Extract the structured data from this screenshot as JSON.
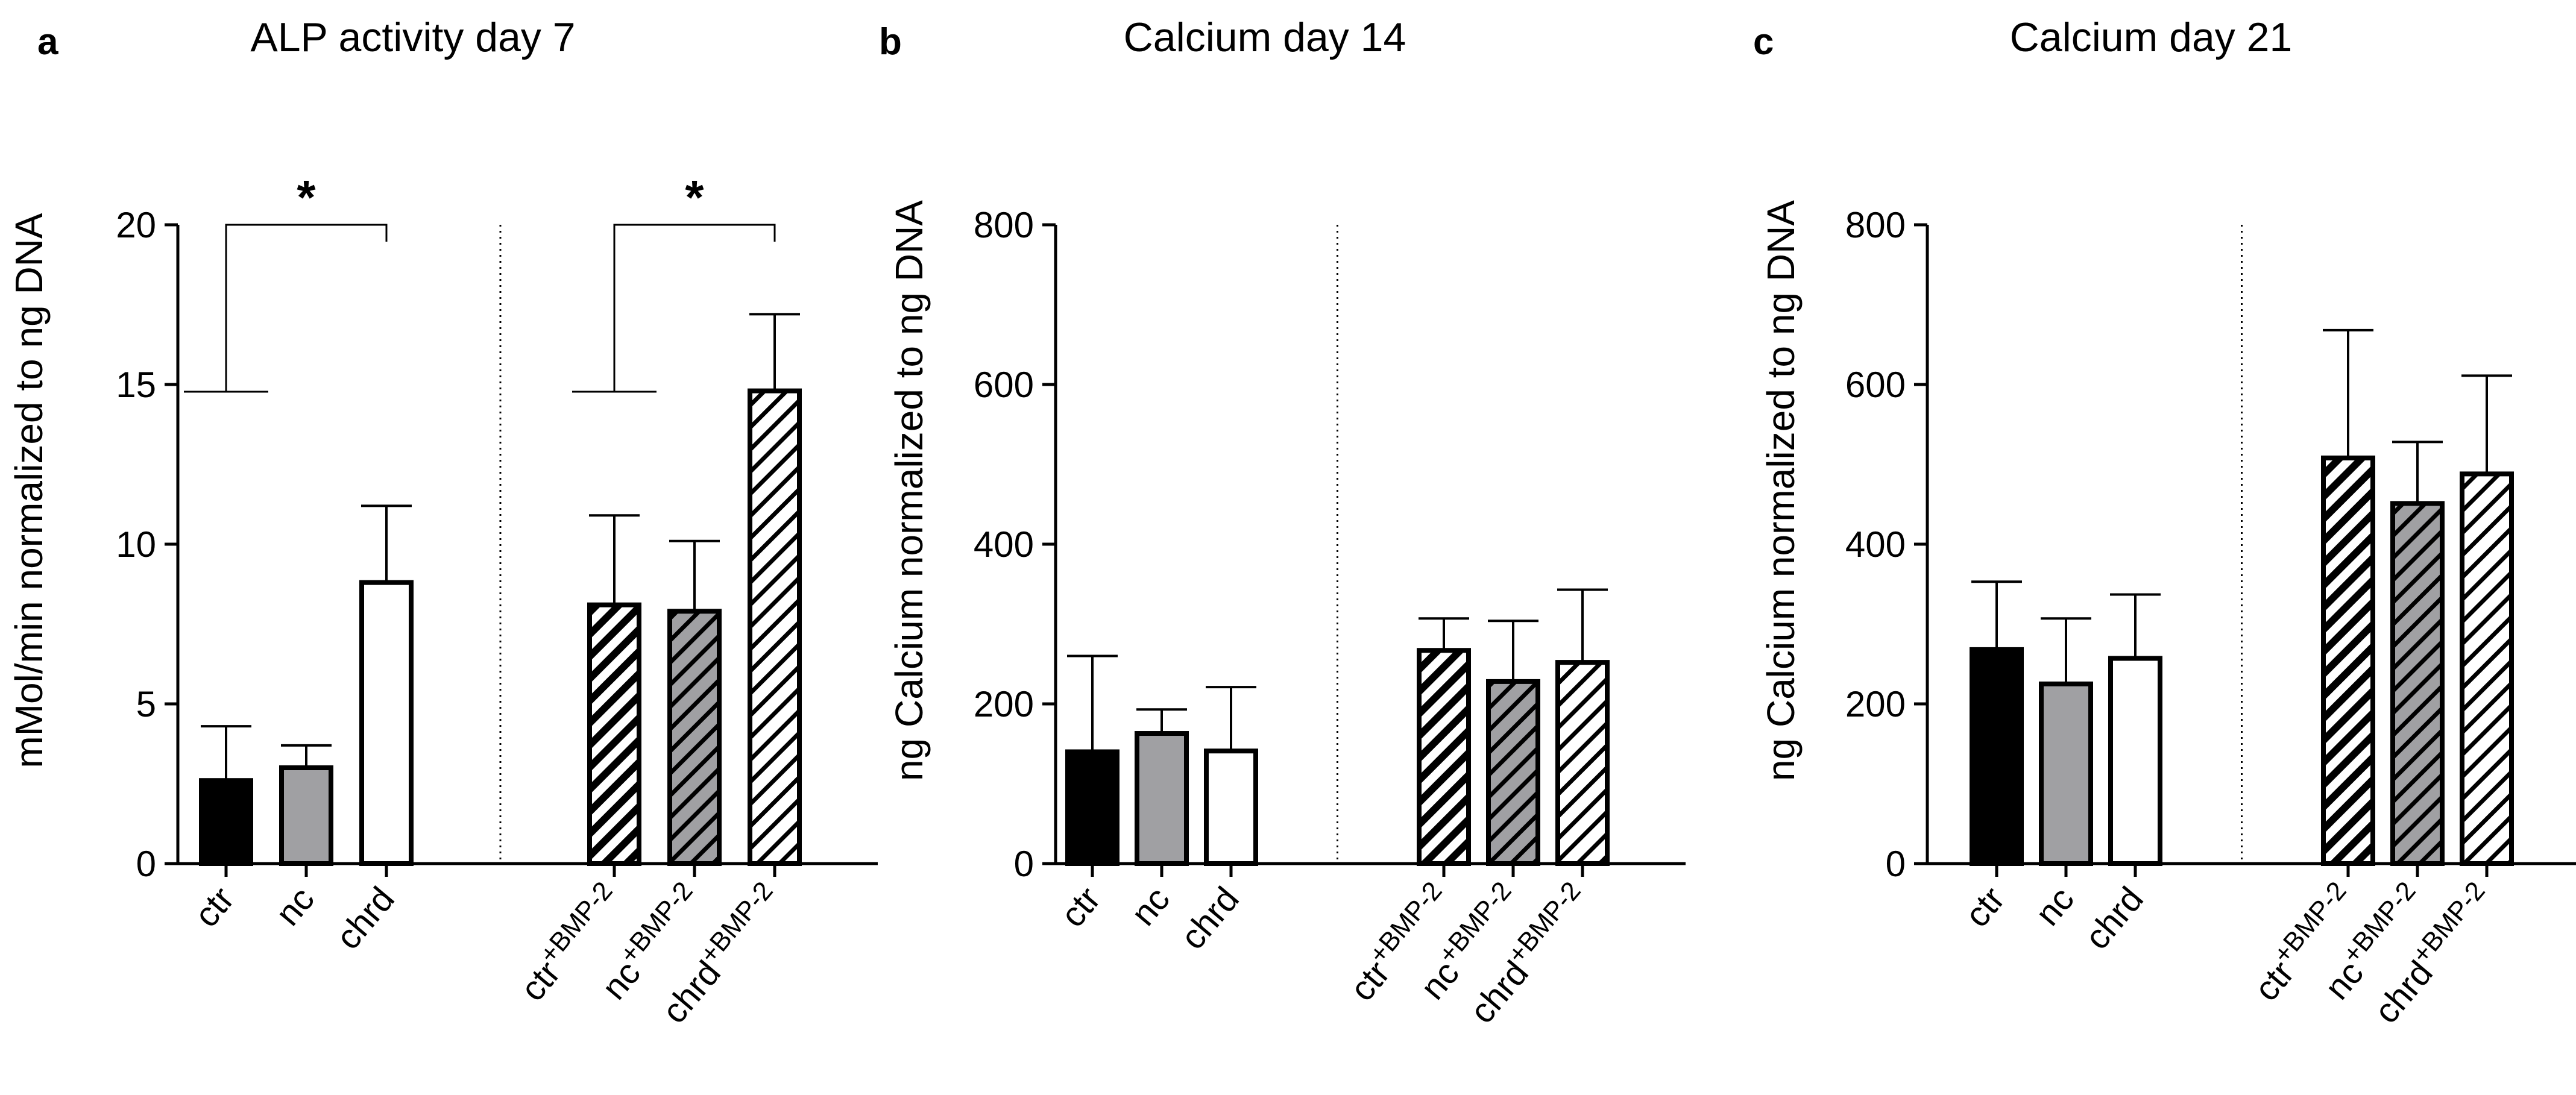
{
  "chart_data": [
    {
      "panel": "a",
      "type": "bar",
      "title": "ALP activity day 7",
      "ylabel": "mMol/min normalized to ng DNA",
      "xlabel": "",
      "ylim": [
        0,
        20
      ],
      "yticks": [
        0,
        5,
        10,
        15,
        20
      ],
      "categories": [
        {
          "main": "ctr",
          "sup": ""
        },
        {
          "main": "nc",
          "sup": ""
        },
        {
          "main": "chrd",
          "sup": ""
        },
        {
          "main": "ctr",
          "sup": "+BMP-2"
        },
        {
          "main": "nc",
          "sup": "+BMP-2"
        },
        {
          "main": "chrd",
          "sup": "+BMP-2"
        }
      ],
      "values": [
        2.6,
        3.0,
        8.8,
        8.1,
        7.9,
        14.8
      ],
      "errors": [
        1.7,
        0.7,
        2.4,
        2.8,
        2.2,
        2.4
      ],
      "significance": [
        {
          "from": 0,
          "to": 2,
          "label": "*"
        },
        {
          "from": 3,
          "to": 5,
          "label": "*"
        }
      ]
    },
    {
      "panel": "b",
      "type": "bar",
      "title": "Calcium day 14",
      "ylabel": "ng Calcium normalized to ng  DNA",
      "xlabel": "",
      "ylim": [
        0,
        800
      ],
      "yticks": [
        0,
        200,
        400,
        600,
        800
      ],
      "categories": [
        {
          "main": "ctr",
          "sup": ""
        },
        {
          "main": "nc",
          "sup": ""
        },
        {
          "main": "chrd",
          "sup": ""
        },
        {
          "main": "ctr",
          "sup": "+BMP-2"
        },
        {
          "main": "nc",
          "sup": "+BMP-2"
        },
        {
          "main": "chrd",
          "sup": "+BMP-2"
        }
      ],
      "values": [
        140,
        163,
        141,
        267,
        228,
        252
      ],
      "errors": [
        120,
        30,
        80,
        40,
        76,
        91
      ],
      "significance": []
    },
    {
      "panel": "c",
      "type": "bar",
      "title": "Calcium day 21",
      "ylabel": "ng Calcium normalized to ng  DNA",
      "xlabel": "",
      "ylim": [
        0,
        800
      ],
      "yticks": [
        0,
        200,
        400,
        600,
        800
      ],
      "categories": [
        {
          "main": "ctr",
          "sup": ""
        },
        {
          "main": "nc",
          "sup": ""
        },
        {
          "main": "chrd",
          "sup": ""
        },
        {
          "main": "ctr",
          "sup": "+BMP-2"
        },
        {
          "main": "nc",
          "sup": "+BMP-2"
        },
        {
          "main": "chrd",
          "sup": "+BMP-2"
        }
      ],
      "values": [
        268,
        225,
        257,
        508,
        451,
        488
      ],
      "errors": [
        85,
        82,
        80,
        160,
        77,
        123
      ],
      "significance": []
    }
  ],
  "colors": {
    "ctr": "#000000",
    "nc": "#a0a0a3",
    "chrd": "#ffffff",
    "axis": "#000000"
  },
  "fills": [
    "solid",
    "solid",
    "solid",
    "hatch",
    "hatch",
    "hatch"
  ]
}
